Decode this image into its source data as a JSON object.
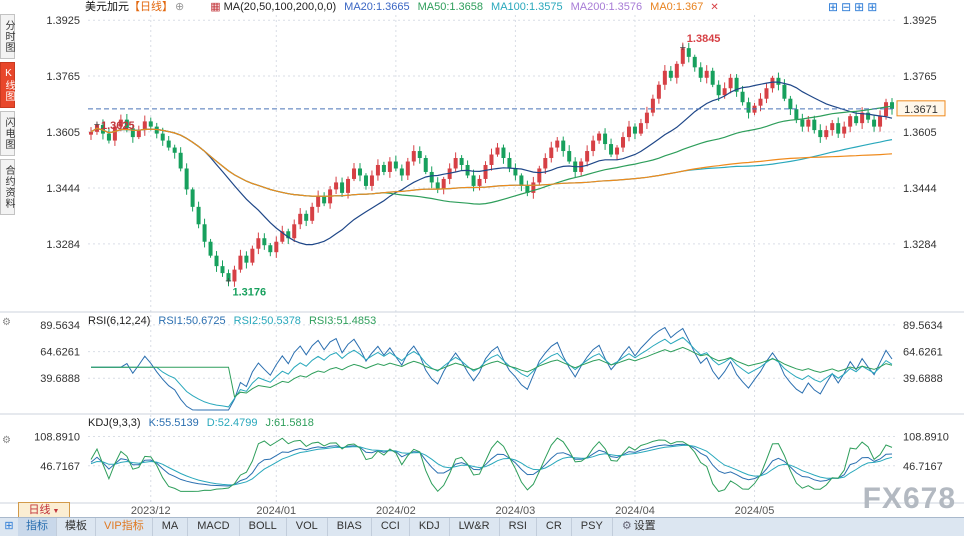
{
  "sidebar": {
    "items": [
      {
        "label": "分时图",
        "name": "time-chart",
        "active": false
      },
      {
        "label": "K线图",
        "name": "kline-chart",
        "active": true
      },
      {
        "label": "闪电图",
        "name": "flash-chart",
        "active": false
      },
      {
        "label": "合约资料",
        "name": "contract-info",
        "active": false
      }
    ]
  },
  "header": {
    "symbol": "美元加元",
    "period_tag": "【日线】",
    "ma_group": "MA(20,50,100,200,0,0)",
    "ma_values": [
      {
        "label": "MA20:1.3665",
        "color": "#3a66c4",
        "name": "ma20-value"
      },
      {
        "label": "MA50:1.3658",
        "color": "#2e9e5b",
        "name": "ma50-value"
      },
      {
        "label": "MA100:1.3575",
        "color": "#29a8bc",
        "name": "ma100-value"
      },
      {
        "label": "MA200:1.3576",
        "color": "#a77bd6",
        "name": "ma200-value"
      },
      {
        "label": "MA0:1.367",
        "color": "#e8821e",
        "name": "ma0-value"
      }
    ]
  },
  "rsi_header": {
    "title": "RSI(6,12,24)",
    "values": [
      {
        "label": "RSI1:50.6725",
        "color": "#2b6fb0",
        "name": "rsi1-value"
      },
      {
        "label": "RSI2:50.5378",
        "color": "#29a8bc",
        "name": "rsi2-value"
      },
      {
        "label": "RSI3:51.4853",
        "color": "#2e9e5b",
        "name": "rsi3-value"
      }
    ]
  },
  "kdj_header": {
    "title": "KDJ(9,3,3)",
    "values": [
      {
        "label": "K:55.5139",
        "color": "#2b6fb0",
        "name": "k-value"
      },
      {
        "label": "D:52.4799",
        "color": "#29a8bc",
        "name": "d-value"
      },
      {
        "label": "J:61.5818",
        "color": "#2e9e5b",
        "name": "j-value"
      }
    ]
  },
  "period_dropdown": "日线",
  "toolbar": {
    "tabs": [
      {
        "label": "指标",
        "name": "indicators-tab",
        "active": true
      },
      {
        "label": "模板",
        "name": "templates-tab",
        "active": false
      },
      {
        "label": "VIP指标",
        "name": "vip-indicators-tab",
        "active": false,
        "color": "#e07820"
      }
    ],
    "buttons": [
      "MA",
      "MACD",
      "BOLL",
      "VOL",
      "BIAS",
      "CCI",
      "KDJ",
      "LW&R",
      "RSI",
      "CR",
      "PSY"
    ],
    "settings": "设置"
  },
  "watermark": "FX678",
  "chart_data": {
    "type": "candlestick",
    "closes": [
      1.3605,
      1.3625,
      1.36,
      1.358,
      1.362,
      1.364,
      1.3615,
      1.359,
      1.361,
      1.3635,
      1.362,
      1.36,
      1.358,
      1.356,
      1.3545,
      1.35,
      1.344,
      1.339,
      1.334,
      1.329,
      1.325,
      1.322,
      1.32,
      1.3176,
      1.321,
      1.325,
      1.323,
      1.327,
      1.33,
      1.328,
      1.326,
      1.329,
      1.332,
      1.33,
      1.334,
      1.337,
      1.335,
      1.339,
      1.342,
      1.34,
      1.344,
      1.346,
      1.343,
      1.347,
      1.35,
      1.348,
      1.345,
      1.348,
      1.351,
      1.349,
      1.352,
      1.35,
      1.348,
      1.352,
      1.355,
      1.353,
      1.349,
      1.346,
      1.344,
      1.347,
      1.35,
      1.353,
      1.351,
      1.348,
      1.345,
      1.347,
      1.351,
      1.354,
      1.356,
      1.353,
      1.35,
      1.348,
      1.345,
      1.343,
      1.346,
      1.35,
      1.353,
      1.356,
      1.358,
      1.355,
      1.352,
      1.349,
      1.352,
      1.355,
      1.358,
      1.36,
      1.357,
      1.354,
      1.356,
      1.359,
      1.362,
      1.36,
      1.363,
      1.366,
      1.37,
      1.374,
      1.378,
      1.376,
      1.38,
      1.3845,
      1.382,
      1.379,
      1.376,
      1.378,
      1.374,
      1.371,
      1.373,
      1.376,
      1.372,
      1.369,
      1.366,
      1.368,
      1.37,
      1.373,
      1.376,
      1.374,
      1.37,
      1.367,
      1.364,
      1.362,
      1.364,
      1.361,
      1.359,
      1.361,
      1.363,
      1.36,
      1.362,
      1.365,
      1.363,
      1.366,
      1.364,
      1.362,
      1.365,
      1.369,
      1.3671
    ],
    "ylim": [
      1.31,
      1.394
    ],
    "price_axis": [
      "1.3925",
      "1.3765",
      "1.3605",
      "1.3444",
      "1.3284"
    ],
    "rsi_axis": [
      "89.5634",
      "64.6261",
      "39.6888"
    ],
    "rsi_range": [
      10,
      96
    ],
    "kdj_axis": [
      "108.8910",
      "46.7167"
    ],
    "kdj_range": [
      -30,
      148
    ],
    "current_price": "1.3671",
    "month_ticks": [
      {
        "label": "2023/12",
        "index": 10
      },
      {
        "label": "2024/01",
        "index": 31
      },
      {
        "label": "2024/02",
        "index": 51
      },
      {
        "label": "2024/03",
        "index": 71
      },
      {
        "label": "2024/04",
        "index": 91
      },
      {
        "label": "2024/05",
        "index": 111
      }
    ],
    "annotations": [
      {
        "text": "1.3625",
        "index": 1,
        "price": 1.3625,
        "color": "#c2353b",
        "pos": "right"
      },
      {
        "text": "1.3845",
        "index": 99,
        "price": 1.3845,
        "color": "#d64045",
        "pos": "above"
      },
      {
        "text": "1.3176",
        "index": 23,
        "price": 1.3176,
        "color": "#17a05d",
        "pos": "below"
      }
    ],
    "ma_windows": [
      20,
      50,
      100,
      200
    ],
    "rsi_periods": [
      6,
      12,
      24
    ],
    "kdj_params": [
      9,
      3,
      3
    ],
    "colors": {
      "up": "#d64045",
      "down": "#17a05d",
      "ma20": "#1f4788",
      "ma50": "#2e9e5b",
      "ma100": "#29a8bc",
      "ma200": "#ef8a1c",
      "current": "#4a74b8",
      "grid": "#d9dee6",
      "axis_text": "#333333"
    }
  }
}
